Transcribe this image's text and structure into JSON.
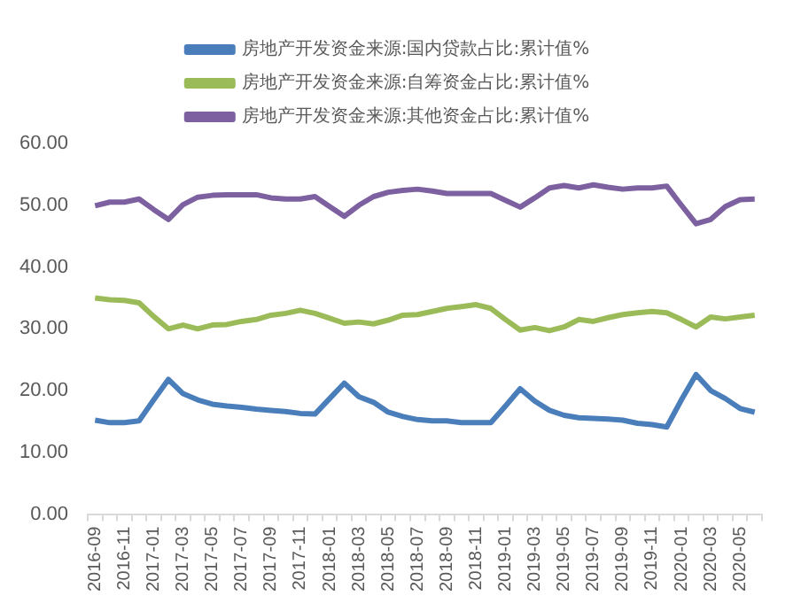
{
  "chart_data": {
    "type": "line",
    "categories": [
      "2016-09",
      null,
      "2016-11",
      null,
      "2017-01",
      null,
      "2017-03",
      null,
      "2017-05",
      null,
      "2017-07",
      null,
      "2017-09",
      null,
      "2017-11",
      null,
      "2018-01",
      null,
      "2018-03",
      null,
      "2018-05",
      null,
      "2018-07",
      null,
      "2018-09",
      null,
      "2018-11",
      null,
      "2019-01",
      null,
      "2019-03",
      null,
      "2019-05",
      null,
      "2019-07",
      null,
      "2019-09",
      null,
      "2019-11",
      null,
      "2020-01",
      null,
      "2020-03",
      null,
      "2020-05",
      null
    ],
    "series": [
      {
        "name": "房地产开发资金来源:国内贷款占比:累计值%",
        "color": "#4a7ebb",
        "values": [
          15.2,
          14.8,
          14.8,
          15.1,
          18.5,
          21.8,
          19.5,
          18.5,
          17.8,
          17.5,
          17.3,
          17.0,
          16.8,
          16.6,
          16.3,
          16.2,
          18.7,
          21.2,
          19.0,
          18.1,
          16.5,
          15.8,
          15.3,
          15.1,
          15.1,
          14.8,
          14.8,
          14.8,
          17.5,
          20.3,
          18.3,
          16.8,
          16.0,
          15.6,
          15.5,
          15.4,
          15.2,
          14.7,
          14.5,
          14.1,
          18.5,
          22.6,
          20.0,
          18.7,
          17.1,
          16.5
        ]
      },
      {
        "name": "房地产开发资金来源:自筹资金占比:累计值%",
        "color": "#9bbb59",
        "values": [
          35.0,
          34.7,
          34.6,
          34.2,
          32.0,
          30.0,
          30.6,
          30.0,
          30.6,
          30.7,
          31.2,
          31.5,
          32.2,
          32.5,
          33.0,
          32.5,
          31.7,
          30.9,
          31.1,
          30.8,
          31.4,
          32.2,
          32.3,
          32.8,
          33.3,
          33.6,
          33.9,
          33.3,
          31.5,
          29.8,
          30.2,
          29.7,
          30.3,
          31.5,
          31.2,
          31.8,
          32.3,
          32.6,
          32.8,
          32.6,
          31.5,
          30.3,
          31.9,
          31.6,
          31.9,
          32.2
        ]
      },
      {
        "name": "房地产开发资金来源:其他资金占比:累计值%",
        "color": "#7d60a0",
        "values": [
          49.9,
          50.5,
          50.5,
          51.0,
          49.3,
          47.7,
          50.1,
          51.3,
          51.6,
          51.7,
          51.7,
          51.7,
          51.2,
          51.0,
          51.0,
          51.4,
          49.8,
          48.2,
          50.0,
          51.4,
          52.1,
          52.4,
          52.6,
          52.3,
          51.9,
          51.9,
          51.9,
          51.9,
          50.8,
          49.7,
          51.2,
          52.8,
          53.2,
          52.8,
          53.3,
          52.9,
          52.6,
          52.8,
          52.8,
          53.1,
          50.0,
          47.0,
          47.7,
          49.8,
          50.9,
          51.0
        ]
      }
    ],
    "ylim": [
      0,
      60
    ],
    "yticks": [
      {
        "value": 0,
        "label": "0.00"
      },
      {
        "value": 10,
        "label": "10.00"
      },
      {
        "value": 20,
        "label": "20.00"
      },
      {
        "value": 30,
        "label": "30.00"
      },
      {
        "value": 40,
        "label": "40.00"
      },
      {
        "value": 50,
        "label": "50.00"
      },
      {
        "value": 60,
        "label": "60.00"
      }
    ],
    "grid": false,
    "legend": "top",
    "marker": "none",
    "line_style": "solid"
  }
}
